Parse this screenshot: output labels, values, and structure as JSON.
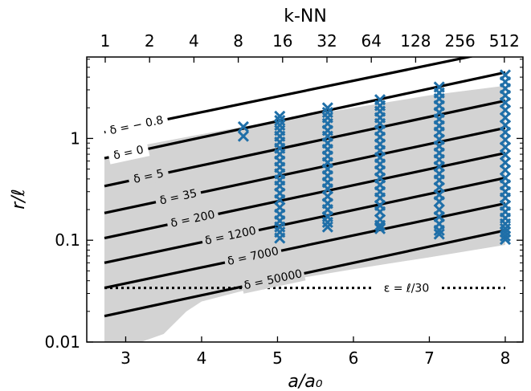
{
  "chart_data": {
    "type": "scatter",
    "xlabel": "a/a₀",
    "ylabel": "r/ℓ",
    "top_xlabel": "k-NN",
    "xlim": [
      2.72,
      8.4
    ],
    "ylim_log10": [
      -2,
      0.8
    ],
    "x_ticks": [
      {
        "value": 3,
        "label": "3"
      },
      {
        "value": 4,
        "label": "4"
      },
      {
        "value": 5,
        "label": "5"
      },
      {
        "value": 6,
        "label": "6"
      },
      {
        "value": 7,
        "label": "7"
      },
      {
        "value": 8,
        "label": "8"
      }
    ],
    "top_ticks": [
      {
        "value": 1,
        "label": "1"
      },
      {
        "value": 2,
        "label": "2"
      },
      {
        "value": 4,
        "label": "4"
      },
      {
        "value": 8,
        "label": "8"
      },
      {
        "value": 16,
        "label": "16"
      },
      {
        "value": 32,
        "label": "32"
      },
      {
        "value": 64,
        "label": "64"
      },
      {
        "value": 128,
        "label": "128"
      },
      {
        "value": 256,
        "label": "256"
      },
      {
        "value": 512,
        "label": "512"
      }
    ],
    "y_ticks": [
      {
        "value": 1,
        "label": "1"
      },
      {
        "value": 0.1,
        "label": "0.1"
      },
      {
        "value": 0.01,
        "label": "0.01"
      }
    ],
    "band": {
      "upper": [
        [
          2.72,
          0.62
        ],
        [
          3.2,
          0.85
        ],
        [
          4.0,
          1.1
        ],
        [
          5.0,
          1.5
        ],
        [
          6.0,
          2.0
        ],
        [
          7.0,
          2.65
        ],
        [
          8.0,
          3.3
        ]
      ],
      "lower": [
        [
          2.72,
          0.01
        ],
        [
          3.2,
          0.01
        ],
        [
          3.5,
          0.012
        ],
        [
          3.8,
          0.02
        ],
        [
          4.0,
          0.025
        ],
        [
          5.0,
          0.039
        ],
        [
          6.0,
          0.052
        ],
        [
          7.0,
          0.068
        ],
        [
          8.0,
          0.09
        ]
      ],
      "color": "#d3d3d3"
    },
    "lines": [
      {
        "label": "δ = − 0.8",
        "y_start": 1.15,
        "y_end": 7.5
      },
      {
        "label": "δ = 0",
        "y_start": 0.64,
        "y_end": 4.45
      },
      {
        "label": "δ = 5",
        "y_start": 0.34,
        "y_end": 2.35
      },
      {
        "label": "δ = 35",
        "y_start": 0.185,
        "y_end": 1.27
      },
      {
        "label": "δ = 200",
        "y_start": 0.105,
        "y_end": 0.72
      },
      {
        "label": "δ = 1200",
        "y_start": 0.06,
        "y_end": 0.41
      },
      {
        "label": "δ = 7000",
        "y_start": 0.034,
        "y_end": 0.23
      },
      {
        "label": "δ = 50000",
        "y_start": 0.018,
        "y_end": 0.125
      }
    ],
    "dotted_line": {
      "label": "ε = ℓ/30",
      "y": 0.034
    },
    "series": [
      {
        "color": "#1f6fa8",
        "marker": "x",
        "points": [
          [
            4.55,
            1.3
          ],
          [
            4.55,
            1.05
          ],
          [
            5.03,
            1.65
          ],
          [
            5.03,
            1.5
          ],
          [
            5.03,
            1.35
          ],
          [
            5.03,
            1.2
          ],
          [
            5.03,
            1.05
          ],
          [
            5.03,
            0.92
          ],
          [
            5.03,
            0.8
          ],
          [
            5.03,
            0.7
          ],
          [
            5.03,
            0.6
          ],
          [
            5.03,
            0.52
          ],
          [
            5.03,
            0.45
          ],
          [
            5.03,
            0.39
          ],
          [
            5.03,
            0.34
          ],
          [
            5.03,
            0.29
          ],
          [
            5.03,
            0.25
          ],
          [
            5.03,
            0.21
          ],
          [
            5.03,
            0.18
          ],
          [
            5.03,
            0.155
          ],
          [
            5.03,
            0.135
          ],
          [
            5.03,
            0.12
          ],
          [
            5.03,
            0.105
          ],
          [
            5.66,
            2.0
          ],
          [
            5.66,
            1.8
          ],
          [
            5.66,
            1.6
          ],
          [
            5.66,
            1.4
          ],
          [
            5.66,
            1.2
          ],
          [
            5.66,
            1.05
          ],
          [
            5.66,
            0.9
          ],
          [
            5.66,
            0.78
          ],
          [
            5.66,
            0.67
          ],
          [
            5.66,
            0.58
          ],
          [
            5.66,
            0.5
          ],
          [
            5.66,
            0.43
          ],
          [
            5.66,
            0.37
          ],
          [
            5.66,
            0.32
          ],
          [
            5.66,
            0.27
          ],
          [
            5.66,
            0.23
          ],
          [
            5.66,
            0.2
          ],
          [
            5.66,
            0.17
          ],
          [
            5.66,
            0.15
          ],
          [
            5.66,
            0.135
          ],
          [
            6.35,
            2.4
          ],
          [
            6.35,
            2.1
          ],
          [
            6.35,
            1.85
          ],
          [
            6.35,
            1.6
          ],
          [
            6.35,
            1.4
          ],
          [
            6.35,
            1.2
          ],
          [
            6.35,
            1.03
          ],
          [
            6.35,
            0.88
          ],
          [
            6.35,
            0.76
          ],
          [
            6.35,
            0.65
          ],
          [
            6.35,
            0.56
          ],
          [
            6.35,
            0.48
          ],
          [
            6.35,
            0.41
          ],
          [
            6.35,
            0.35
          ],
          [
            6.35,
            0.3
          ],
          [
            6.35,
            0.26
          ],
          [
            6.35,
            0.22
          ],
          [
            6.35,
            0.19
          ],
          [
            6.35,
            0.16
          ],
          [
            6.35,
            0.14
          ],
          [
            6.35,
            0.13
          ],
          [
            7.13,
            3.2
          ],
          [
            7.13,
            2.8
          ],
          [
            7.13,
            2.45
          ],
          [
            7.13,
            2.1
          ],
          [
            7.13,
            1.8
          ],
          [
            7.13,
            1.55
          ],
          [
            7.13,
            1.33
          ],
          [
            7.13,
            1.15
          ],
          [
            7.13,
            0.98
          ],
          [
            7.13,
            0.84
          ],
          [
            7.13,
            0.72
          ],
          [
            7.13,
            0.62
          ],
          [
            7.13,
            0.53
          ],
          [
            7.13,
            0.45
          ],
          [
            7.13,
            0.39
          ],
          [
            7.13,
            0.33
          ],
          [
            7.13,
            0.28
          ],
          [
            7.13,
            0.24
          ],
          [
            7.13,
            0.2
          ],
          [
            7.13,
            0.17
          ],
          [
            7.13,
            0.145
          ],
          [
            7.13,
            0.125
          ],
          [
            7.13,
            0.115
          ],
          [
            8.0,
            4.2
          ],
          [
            8.0,
            3.6
          ],
          [
            8.0,
            3.1
          ],
          [
            8.0,
            2.65
          ],
          [
            8.0,
            2.25
          ],
          [
            8.0,
            1.9
          ],
          [
            8.0,
            1.6
          ],
          [
            8.0,
            1.35
          ],
          [
            8.0,
            1.15
          ],
          [
            8.0,
            0.97
          ],
          [
            8.0,
            0.82
          ],
          [
            8.0,
            0.69
          ],
          [
            8.0,
            0.58
          ],
          [
            8.0,
            0.49
          ],
          [
            8.0,
            0.41
          ],
          [
            8.0,
            0.35
          ],
          [
            8.0,
            0.3
          ],
          [
            8.0,
            0.26
          ],
          [
            8.0,
            0.22
          ],
          [
            8.0,
            0.19
          ],
          [
            8.0,
            0.165
          ],
          [
            8.0,
            0.145
          ],
          [
            8.0,
            0.13
          ],
          [
            8.0,
            0.12
          ],
          [
            8.0,
            0.11
          ],
          [
            8.0,
            0.102
          ]
        ]
      }
    ]
  }
}
